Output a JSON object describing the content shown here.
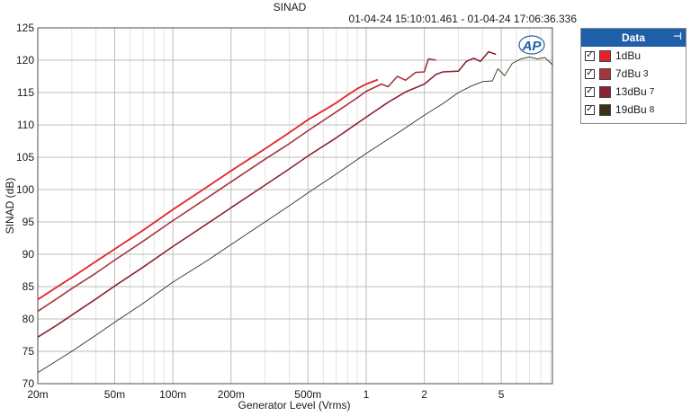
{
  "header": {
    "title": "SINAD",
    "timestamp": "01-04-24 15:10:01.461 - 01-04-24 17:06:36.336"
  },
  "logo_text": "AP",
  "legend": {
    "title": "Data",
    "items": [
      {
        "label": "1dBu",
        "suffix": "",
        "color": "#e8202a",
        "checked": true
      },
      {
        "label": "7dBu",
        "suffix": "3",
        "color": "#a8343c",
        "checked": true
      },
      {
        "label": "13dBu",
        "suffix": "7",
        "color": "#8c2232",
        "checked": true
      },
      {
        "label": "19dBu",
        "suffix": "8",
        "color": "#3c3016",
        "checked": true
      }
    ]
  },
  "chart_data": {
    "type": "line",
    "title": "SINAD",
    "xlabel": "Generator Level (Vrms)",
    "ylabel": "SINAD (dB)",
    "x_scale": "log",
    "xlim": [
      0.02,
      9.2
    ],
    "ylim": [
      70,
      125
    ],
    "x_ticks": [
      {
        "value": 0.02,
        "label": "20m"
      },
      {
        "value": 0.05,
        "label": "50m"
      },
      {
        "value": 0.1,
        "label": "100m"
      },
      {
        "value": 0.2,
        "label": "200m"
      },
      {
        "value": 0.5,
        "label": "500m"
      },
      {
        "value": 1,
        "label": "1"
      },
      {
        "value": 2,
        "label": "2"
      },
      {
        "value": 5,
        "label": "5"
      }
    ],
    "y_ticks": [
      70,
      75,
      80,
      85,
      90,
      95,
      100,
      105,
      110,
      115,
      120,
      125
    ],
    "grid": true,
    "legend_position": "right",
    "series": [
      {
        "name": "1dBu",
        "color": "#e8202a",
        "width": 1.8,
        "points": [
          [
            0.02,
            83
          ],
          [
            0.025,
            84.9
          ],
          [
            0.03,
            86.4
          ],
          [
            0.04,
            88.9
          ],
          [
            0.05,
            90.8
          ],
          [
            0.07,
            93.7
          ],
          [
            0.1,
            96.9
          ],
          [
            0.15,
            100.4
          ],
          [
            0.2,
            102.9
          ],
          [
            0.3,
            106.3
          ],
          [
            0.4,
            108.8
          ],
          [
            0.5,
            110.8
          ],
          [
            0.6,
            112.2
          ],
          [
            0.7,
            113.4
          ],
          [
            0.8,
            114.6
          ],
          [
            0.9,
            115.6
          ],
          [
            1.0,
            116.3
          ],
          [
            1.15,
            117
          ]
        ]
      },
      {
        "name": "7dBu",
        "color": "#a8343c",
        "width": 1.6,
        "points": [
          [
            0.02,
            81.2
          ],
          [
            0.025,
            83.1
          ],
          [
            0.03,
            84.7
          ],
          [
            0.04,
            87.1
          ],
          [
            0.05,
            89.1
          ],
          [
            0.07,
            92
          ],
          [
            0.1,
            95.2
          ],
          [
            0.15,
            98.7
          ],
          [
            0.2,
            101.2
          ],
          [
            0.3,
            104.7
          ],
          [
            0.4,
            107.1
          ],
          [
            0.5,
            109.1
          ],
          [
            0.7,
            112
          ],
          [
            0.9,
            114.2
          ],
          [
            1.0,
            115.2
          ],
          [
            1.2,
            116.3
          ],
          [
            1.3,
            115.9
          ],
          [
            1.45,
            117.5
          ],
          [
            1.6,
            116.9
          ],
          [
            1.8,
            118.1
          ],
          [
            2.0,
            118.2
          ],
          [
            2.1,
            120.2
          ],
          [
            2.3,
            120
          ]
        ]
      },
      {
        "name": "13dBu",
        "color": "#8c2232",
        "width": 1.6,
        "points": [
          [
            0.02,
            77.2
          ],
          [
            0.025,
            79
          ],
          [
            0.03,
            80.6
          ],
          [
            0.04,
            83.1
          ],
          [
            0.05,
            85.1
          ],
          [
            0.07,
            88
          ],
          [
            0.1,
            91.2
          ],
          [
            0.15,
            94.7
          ],
          [
            0.2,
            97.2
          ],
          [
            0.3,
            100.7
          ],
          [
            0.4,
            103.2
          ],
          [
            0.5,
            105.2
          ],
          [
            0.7,
            108
          ],
          [
            1.0,
            111.2
          ],
          [
            1.3,
            113.5
          ],
          [
            1.6,
            115.1
          ],
          [
            2.0,
            116.3
          ],
          [
            2.3,
            117.8
          ],
          [
            2.5,
            118.2
          ],
          [
            3.0,
            118.3
          ],
          [
            3.3,
            119.8
          ],
          [
            3.6,
            120.3
          ],
          [
            3.9,
            119.8
          ],
          [
            4.3,
            121.3
          ],
          [
            4.7,
            120.9
          ]
        ]
      },
      {
        "name": "19dBu",
        "color": "#3c3016",
        "width": 0.9,
        "points": [
          [
            0.02,
            71.7
          ],
          [
            0.025,
            73.5
          ],
          [
            0.03,
            75
          ],
          [
            0.04,
            77.5
          ],
          [
            0.05,
            79.5
          ],
          [
            0.07,
            82.4
          ],
          [
            0.1,
            85.7
          ],
          [
            0.15,
            89
          ],
          [
            0.2,
            91.5
          ],
          [
            0.3,
            95
          ],
          [
            0.4,
            97.5
          ],
          [
            0.5,
            99.5
          ],
          [
            0.7,
            102.4
          ],
          [
            1.0,
            105.6
          ],
          [
            1.5,
            109
          ],
          [
            2.0,
            111.5
          ],
          [
            2.5,
            113.3
          ],
          [
            3.0,
            115
          ],
          [
            3.5,
            116
          ],
          [
            4.0,
            116.7
          ],
          [
            4.5,
            116.8
          ],
          [
            4.8,
            118.7
          ],
          [
            5.2,
            117.6
          ],
          [
            5.7,
            119.5
          ],
          [
            6.3,
            120.2
          ],
          [
            7.0,
            120.5
          ],
          [
            7.7,
            120.2
          ],
          [
            8.4,
            120.4
          ],
          [
            9.2,
            119.3
          ]
        ]
      }
    ]
  }
}
